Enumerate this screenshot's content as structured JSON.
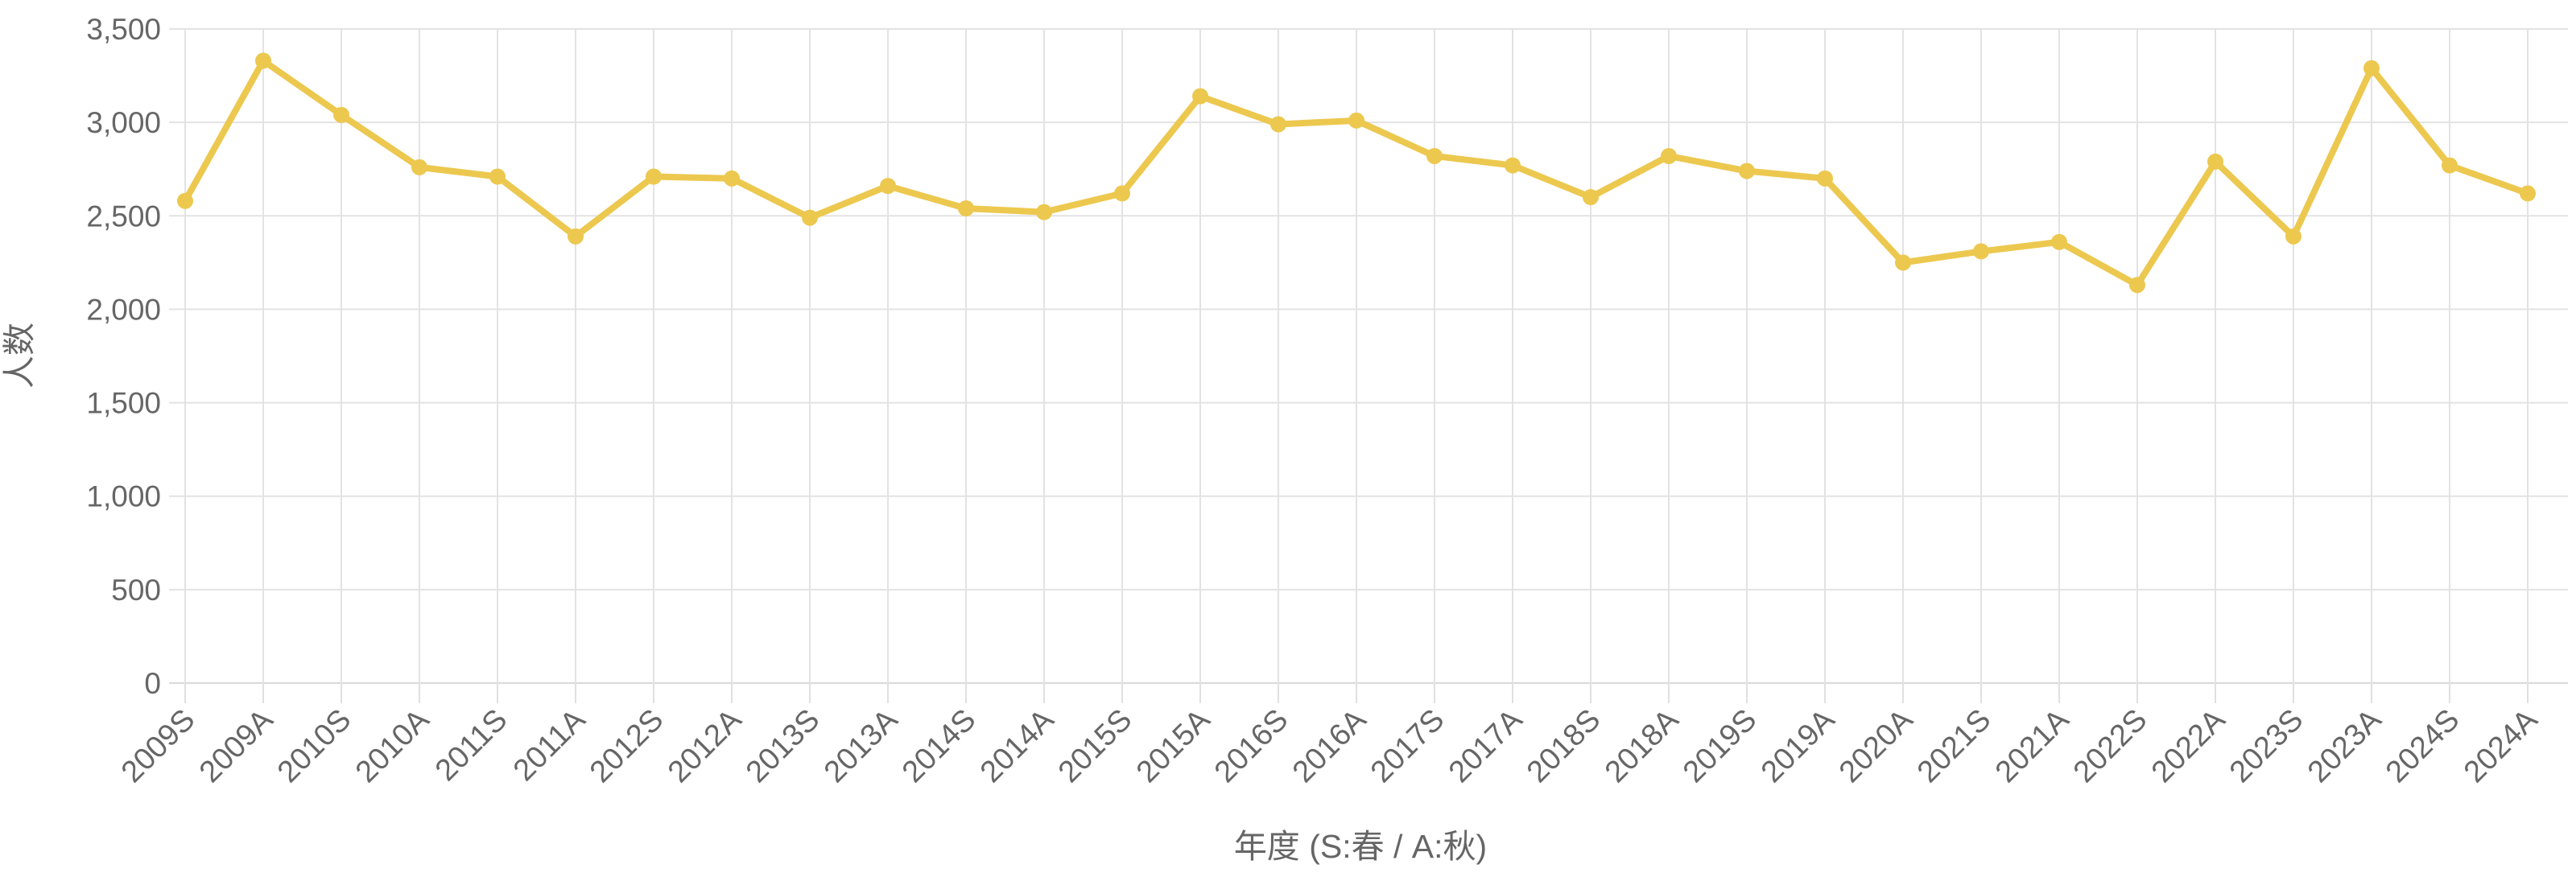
{
  "chart_data": {
    "type": "line",
    "title": "",
    "xlabel": "年度 (S:春 / A:秋)",
    "ylabel": "人数",
    "categories": [
      "2009S",
      "2009A",
      "2010S",
      "2010A",
      "2011S",
      "2011A",
      "2012S",
      "2012A",
      "2013S",
      "2013A",
      "2014S",
      "2014A",
      "2015S",
      "2015A",
      "2016S",
      "2016A",
      "2017S",
      "2017A",
      "2018S",
      "2018A",
      "2019S",
      "2019A",
      "2020A",
      "2021S",
      "2021A",
      "2022S",
      "2022A",
      "2023S",
      "2023A",
      "2024S",
      "2024A"
    ],
    "values": [
      2580,
      3330,
      3040,
      2760,
      2710,
      2390,
      2710,
      2700,
      2490,
      2660,
      2540,
      2520,
      2620,
      3140,
      2990,
      3010,
      2820,
      2770,
      2600,
      2820,
      2740,
      2700,
      2250,
      2310,
      2360,
      2130,
      2790,
      2390,
      3290,
      2770,
      2620
    ],
    "ylim": [
      0,
      3500
    ],
    "y_step": 500,
    "y_tick_labels": [
      "3,500",
      "3,000",
      "2,500",
      "2,000",
      "1,500",
      "1,000",
      "500",
      "0"
    ],
    "grid": "on",
    "legend": "none",
    "note_missing_category": "2020S not present",
    "colors": {
      "series_line": "#ECC84F",
      "series_marker": "#ECC84F",
      "gridline": "#E3E3E3",
      "axis_baseline": "#D9D9D9",
      "tick_mark": "#E0E0E0",
      "label_text": "#666666"
    }
  }
}
